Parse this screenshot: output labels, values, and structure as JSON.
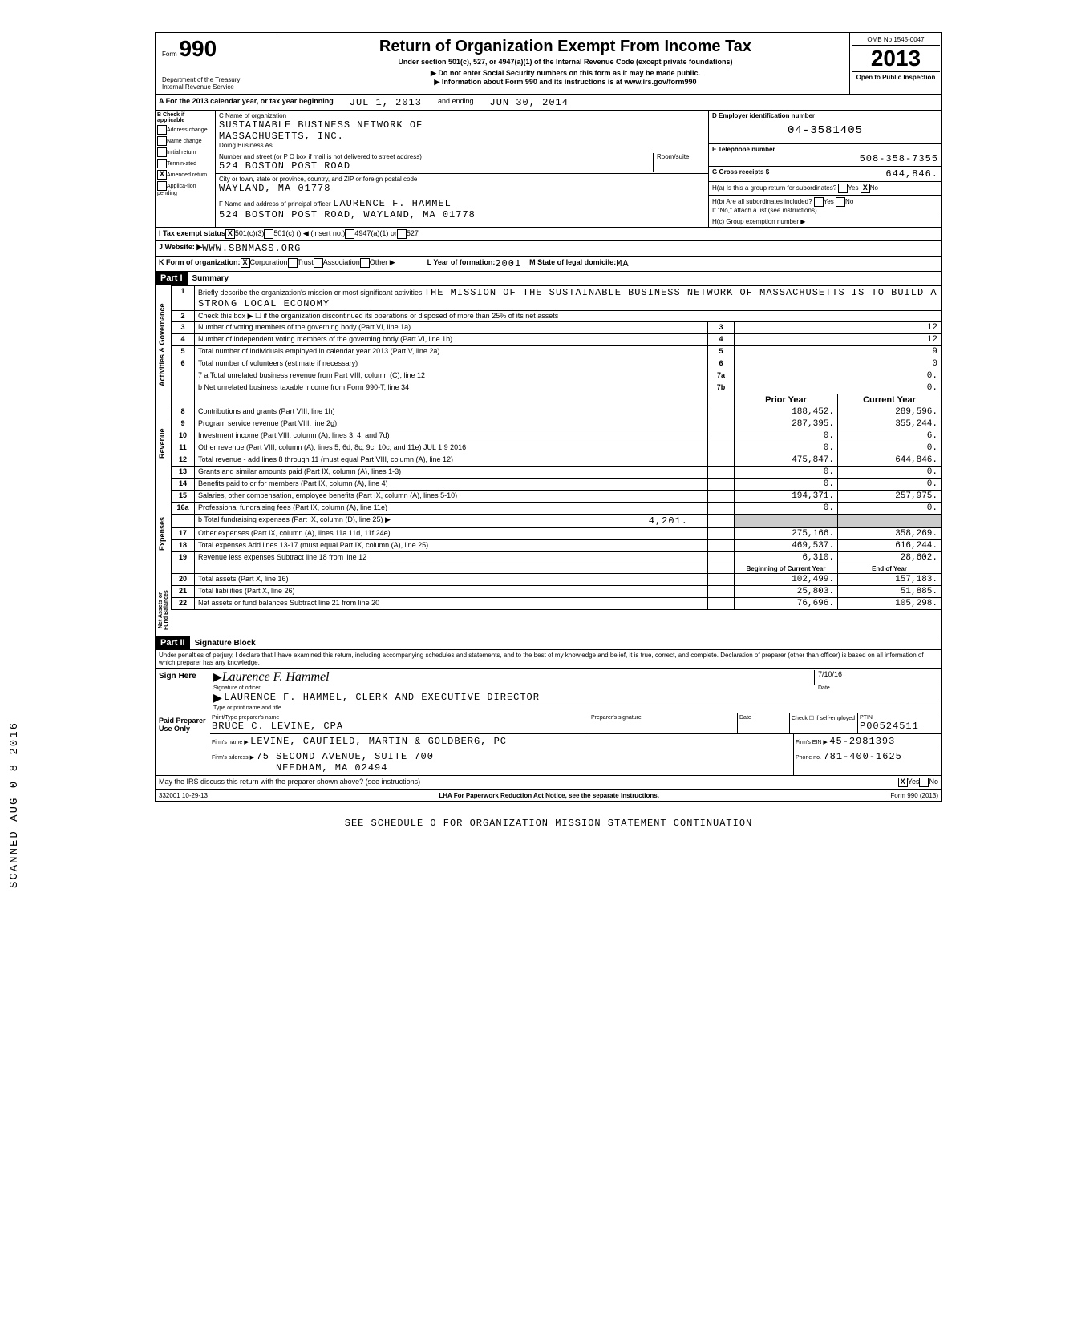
{
  "omb": "OMB No 1545-0047",
  "form": "990",
  "form_label": "Form",
  "dept": "Department of the Treasury\nInternal Revenue Service",
  "title": "Return of Organization Exempt From Income Tax",
  "subtitle": "Under section 501(c), 527, or 4947(a)(1) of the Internal Revenue Code (except private foundations)",
  "note1": "▶ Do not enter Social Security numbers on this form as it may be made public.",
  "note2": "▶ Information about Form 990 and its instructions is at www.irs.gov/form990",
  "year": "2013",
  "open": "Open to Public Inspection",
  "period_line": "A For the 2013 calendar year, or tax year beginning",
  "period_start": "JUL 1, 2013",
  "period_mid": "and ending",
  "period_end": "JUN 30, 2014",
  "b_label": "B Check if applicable",
  "checks": [
    "Address change",
    "Name change",
    "Initial return",
    "Termin-ated",
    "Amended return",
    "Applica-tion pending"
  ],
  "amended_checked": "X",
  "c_label": "C Name of organization",
  "org_name": "SUSTAINABLE BUSINESS NETWORK OF",
  "org_name2": "MASSACHUSETTS, INC.",
  "dba_label": "Doing Business As",
  "addr_label": "Number and street (or P O box if mail is not delivered to street address)",
  "room_label": "Room/suite",
  "addr": "524 BOSTON POST ROAD",
  "city_label": "City or town, state or province, country, and ZIP or foreign postal code",
  "city": "WAYLAND, MA  01778",
  "f_label": "F Name and address of principal officer",
  "officer": "LAURENCE F. HAMMEL",
  "officer_addr": "524 BOSTON POST ROAD, WAYLAND, MA  01778",
  "d_label": "D Employer identification number",
  "ein": "04-3581405",
  "e_label": "E Telephone number",
  "phone": "508-358-7355",
  "g_label": "G Gross receipts $",
  "gross": "644,846.",
  "ha_label": "H(a) Is this a group return for subordinates?",
  "hb_label": "H(b) Are all subordinates included?",
  "h_note": "If \"No,\" attach a list (see instructions)",
  "hc_label": "H(c) Group exemption number ▶",
  "yes": "Yes",
  "no": "No",
  "no_checked": "X",
  "tax_exempt_label": "I Tax exempt status",
  "tax_501c3": "501(c)(3)",
  "tax_501c": "501(c) (",
  "tax_insert": ") ◀ (insert no.)",
  "tax_4947": "4947(a)(1) or",
  "tax_527": "527",
  "j_label": "J Website: ▶",
  "website": "WWW.SBNMASS.ORG",
  "k_label": "K Form of organization:",
  "k_corp": "Corporation",
  "k_trust": "Trust",
  "k_assoc": "Association",
  "k_other": "Other ▶",
  "l_label": "L Year of formation:",
  "l_year": "2001",
  "m_label": "M State of legal domicile:",
  "m_state": "MA",
  "part1": "Part I",
  "part1_title": "Summary",
  "q1": "Briefly describe the organization's mission or most significant activities",
  "mission": "THE MISSION OF THE SUSTAINABLE BUSINESS NETWORK OF MASSACHUSETTS IS TO BUILD A STRONG LOCAL ECONOMY",
  "q2": "Check this box ▶ ☐ if the organization discontinued its operations or disposed of more than 25% of its net assets",
  "q3": "Number of voting members of the governing body (Part VI, line 1a)",
  "q4": "Number of independent voting members of the governing body (Part VI, line 1b)",
  "q5": "Total number of individuals employed in calendar year 2013 (Part V, line 2a)",
  "q6": "Total number of volunteers (estimate if necessary)",
  "q7a": "7 a Total unrelated business revenue from Part VIII, column (C), line 12",
  "q7b": "b Net unrelated business taxable income from Form 990-T, line 34",
  "v3": "12",
  "v4": "12",
  "v5": "9",
  "v6": "0",
  "v7a": "0.",
  "v7b": "0.",
  "prior_year": "Prior Year",
  "current_year": "Current Year",
  "rows": [
    {
      "n": "8",
      "t": "Contributions and grants (Part VIII, line 1h)",
      "p": "188,452.",
      "c": "289,596."
    },
    {
      "n": "9",
      "t": "Program service revenue (Part VIII, line 2g)",
      "p": "287,395.",
      "c": "355,244."
    },
    {
      "n": "10",
      "t": "Investment income (Part VIII, column (A), lines 3, 4, and 7d)",
      "p": "0.",
      "c": "6."
    },
    {
      "n": "11",
      "t": "Other revenue (Part VIII, column (A), lines 5, 6d, 8c, 9c, 10c, and 11e) JUL 1 9 2016",
      "p": "0.",
      "c": "0."
    },
    {
      "n": "12",
      "t": "Total revenue - add lines 8 through 11 (must equal Part VIII, column (A), line 12)",
      "p": "475,847.",
      "c": "644,846."
    },
    {
      "n": "13",
      "t": "Grants and similar amounts paid (Part IX, column (A), lines 1-3)",
      "p": "0.",
      "c": "0."
    },
    {
      "n": "14",
      "t": "Benefits paid to or for members (Part IX, column (A), line 4)",
      "p": "0.",
      "c": "0."
    },
    {
      "n": "15",
      "t": "Salaries, other compensation, employee benefits (Part IX, column (A), lines 5-10)",
      "p": "194,371.",
      "c": "257,975."
    },
    {
      "n": "16a",
      "t": "Professional fundraising fees (Part IX, column (A), line 11e)",
      "p": "0.",
      "c": "0."
    },
    {
      "n": "",
      "t": "b Total fundraising expenses (Part IX, column (D), line 25) ▶",
      "p": "",
      "c": "",
      "extra": "4,201."
    },
    {
      "n": "17",
      "t": "Other expenses (Part IX, column (A), lines 11a 11d, 11f 24e)",
      "p": "275,166.",
      "c": "358,269."
    },
    {
      "n": "18",
      "t": "Total expenses Add lines 13-17 (must equal Part IX, column (A), line 25)",
      "p": "469,537.",
      "c": "616,244."
    },
    {
      "n": "19",
      "t": "Revenue less expenses Subtract line 18 from line 12",
      "p": "6,310.",
      "c": "28,602."
    }
  ],
  "begin_label": "Beginning of Current Year",
  "end_label": "End of Year",
  "assets_rows": [
    {
      "n": "20",
      "t": "Total assets (Part X, line 16)",
      "p": "102,499.",
      "c": "157,183."
    },
    {
      "n": "21",
      "t": "Total liabilities (Part X, line 26)",
      "p": "25,803.",
      "c": "51,885."
    },
    {
      "n": "22",
      "t": "Net assets or fund balances Subtract line 21 from line 20",
      "p": "76,696.",
      "c": "105,298."
    }
  ],
  "vert_gov": "Activities & Governance",
  "vert_rev": "Revenue",
  "vert_exp": "Expenses",
  "vert_net": "Net Assets or Fund Balances",
  "part2": "Part II",
  "part2_title": "Signature Block",
  "penalty": "Under penalties of perjury, I declare that I have examined this return, including accompanying schedules and statements, and to the best of my knowledge and belief, it is true, correct, and complete. Declaration of preparer (other than officer) is based on all information of which preparer has any knowledge.",
  "sign_here": "Sign Here",
  "sig_officer": "Signature of officer",
  "sig_date": "Date",
  "sig_date_val": "7/10/16",
  "sig_name": "LAURENCE F. HAMMEL, CLERK AND EXECUTIVE DIRECTOR",
  "sig_type": "Type or print name and title",
  "paid": "Paid Preparer Use Only",
  "prep_name_label": "Print/Type preparer's name",
  "prep_name": "BRUCE C. LEVINE, CPA",
  "prep_sig_label": "Preparer's signature",
  "prep_date": "Date",
  "prep_check": "Check ☐ if self-employed",
  "ptin_label": "PTIN",
  "ptin": "P00524511",
  "firm_label": "Firm's name ▶",
  "firm": "LEVINE, CAUFIELD, MARTIN & GOLDBERG, PC",
  "firm_ein_label": "Firm's EIN ▶",
  "firm_ein": "45-2981393",
  "firm_addr_label": "Firm's address ▶",
  "firm_addr": "75 SECOND AVENUE, SUITE 700",
  "firm_addr2": "NEEDHAM, MA 02494",
  "firm_phone_label": "Phone no.",
  "firm_phone": "781-400-1625",
  "discuss": "May the IRS discuss this return with the preparer shown above? (see instructions)",
  "discuss_yes": "X",
  "lha": "LHA  For Paperwork Reduction Act Notice, see the separate instructions.",
  "form_foot": "Form 990 (2013)",
  "code": "332001 10-29-13",
  "see": "SEE SCHEDULE O FOR ORGANIZATION MISSION STATEMENT CONTINUATION",
  "scan": "SCANNED AUG 0 8 2016"
}
